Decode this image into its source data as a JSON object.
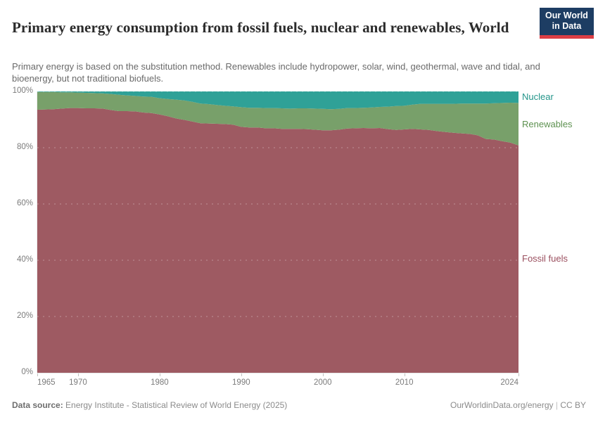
{
  "header": {
    "title": "Primary energy consumption from fossil fuels, nuclear and renewables, World",
    "subtitle": "Primary energy is based on the substitution method. Renewables include hydropower, solar, wind, geothermal, wave and tidal, and bioenergy, but not traditional biofuels.",
    "logo": {
      "line1": "Our World",
      "line2": "in Data",
      "bg": "#1d3d63",
      "accent": "#dc3e45"
    }
  },
  "chart_data": {
    "type": "area",
    "stacked": true,
    "normalized": true,
    "title": "Primary energy consumption from fossil fuels, nuclear and renewables, World",
    "xlabel": "",
    "ylabel": "",
    "unit": "%",
    "xlim": [
      1965,
      2024
    ],
    "ylim": [
      0,
      100
    ],
    "grid": "dashed-horizontal",
    "legend_position": "right-inline",
    "x": [
      1965,
      1966,
      1967,
      1968,
      1969,
      1970,
      1971,
      1972,
      1973,
      1974,
      1975,
      1976,
      1977,
      1978,
      1979,
      1980,
      1981,
      1982,
      1983,
      1984,
      1985,
      1986,
      1987,
      1988,
      1989,
      1990,
      1991,
      1992,
      1993,
      1994,
      1995,
      1996,
      1997,
      1998,
      1999,
      2000,
      2001,
      2002,
      2003,
      2004,
      2005,
      2006,
      2007,
      2008,
      2009,
      2010,
      2011,
      2012,
      2013,
      2014,
      2015,
      2016,
      2017,
      2018,
      2019,
      2020,
      2021,
      2022,
      2023,
      2024
    ],
    "series": [
      {
        "name": "Fossil fuels",
        "color": "#9e5a62",
        "label_color": "#9a4e5e",
        "values": [
          93.5,
          93.6,
          93.7,
          93.9,
          94.1,
          94.1,
          94.0,
          94.0,
          93.9,
          93.4,
          93.0,
          93.0,
          92.9,
          92.5,
          92.3,
          91.8,
          91.2,
          90.4,
          89.9,
          89.3,
          88.7,
          88.6,
          88.5,
          88.4,
          88.2,
          87.4,
          87.2,
          87.2,
          86.9,
          86.9,
          86.7,
          86.7,
          86.7,
          86.6,
          86.4,
          86.2,
          86.2,
          86.4,
          86.8,
          86.9,
          87.0,
          86.9,
          87.0,
          86.6,
          86.3,
          86.5,
          86.7,
          86.5,
          86.3,
          85.9,
          85.6,
          85.3,
          85.1,
          84.9,
          84.4,
          83.1,
          82.9,
          82.3,
          81.8,
          80.8
        ]
      },
      {
        "name": "Renewables",
        "color": "#78a06a",
        "label_color": "#5d9150",
        "values": [
          6.3,
          6.2,
          6.1,
          5.8,
          5.6,
          5.5,
          5.5,
          5.4,
          5.4,
          5.7,
          5.8,
          5.6,
          5.5,
          5.7,
          5.8,
          5.8,
          6.1,
          6.7,
          6.9,
          7.0,
          7.0,
          6.9,
          6.7,
          6.5,
          6.5,
          7.0,
          7.0,
          7.0,
          7.2,
          7.2,
          7.3,
          7.2,
          7.3,
          7.4,
          7.5,
          7.6,
          7.5,
          7.4,
          7.3,
          7.2,
          7.2,
          7.4,
          7.5,
          8.0,
          8.5,
          8.4,
          8.6,
          9.1,
          9.3,
          9.7,
          10.0,
          10.3,
          10.6,
          10.8,
          11.3,
          12.6,
          12.9,
          13.6,
          14.2,
          15.1
        ]
      },
      {
        "name": "Nuclear",
        "color": "#2fa197",
        "label_color": "#23958a",
        "values": [
          0.2,
          0.2,
          0.2,
          0.3,
          0.3,
          0.4,
          0.5,
          0.6,
          0.7,
          0.9,
          1.2,
          1.4,
          1.6,
          1.8,
          1.9,
          2.4,
          2.7,
          2.9,
          3.2,
          3.7,
          4.3,
          4.5,
          4.8,
          5.1,
          5.3,
          5.6,
          5.8,
          5.8,
          5.9,
          5.9,
          6.0,
          6.1,
          6.0,
          6.0,
          6.1,
          6.2,
          6.3,
          6.2,
          5.9,
          5.9,
          5.8,
          5.7,
          5.5,
          5.4,
          5.2,
          5.1,
          4.7,
          4.4,
          4.4,
          4.4,
          4.4,
          4.4,
          4.3,
          4.3,
          4.3,
          4.3,
          4.2,
          4.1,
          4.0,
          4.1
        ]
      }
    ],
    "yticks": [
      {
        "value": 0,
        "label": "0%"
      },
      {
        "value": 20,
        "label": "20%"
      },
      {
        "value": 40,
        "label": "40%"
      },
      {
        "value": 60,
        "label": "60%"
      },
      {
        "value": 80,
        "label": "80%"
      },
      {
        "value": 100,
        "label": "100%"
      }
    ],
    "xticks": [
      {
        "value": 1965,
        "label": "1965"
      },
      {
        "value": 1970,
        "label": "1970"
      },
      {
        "value": 1980,
        "label": "1980"
      },
      {
        "value": 1990,
        "label": "1990"
      },
      {
        "value": 2000,
        "label": "2000"
      },
      {
        "value": 2010,
        "label": "2010"
      },
      {
        "value": 2024,
        "label": "2024"
      }
    ]
  },
  "footer": {
    "datasource_label": "Data source:",
    "datasource_text": " Energy Institute - Statistical Review of World Energy (2025)",
    "credit": "OurWorldinData.org/energy",
    "separator": " | ",
    "license": "CC BY"
  }
}
